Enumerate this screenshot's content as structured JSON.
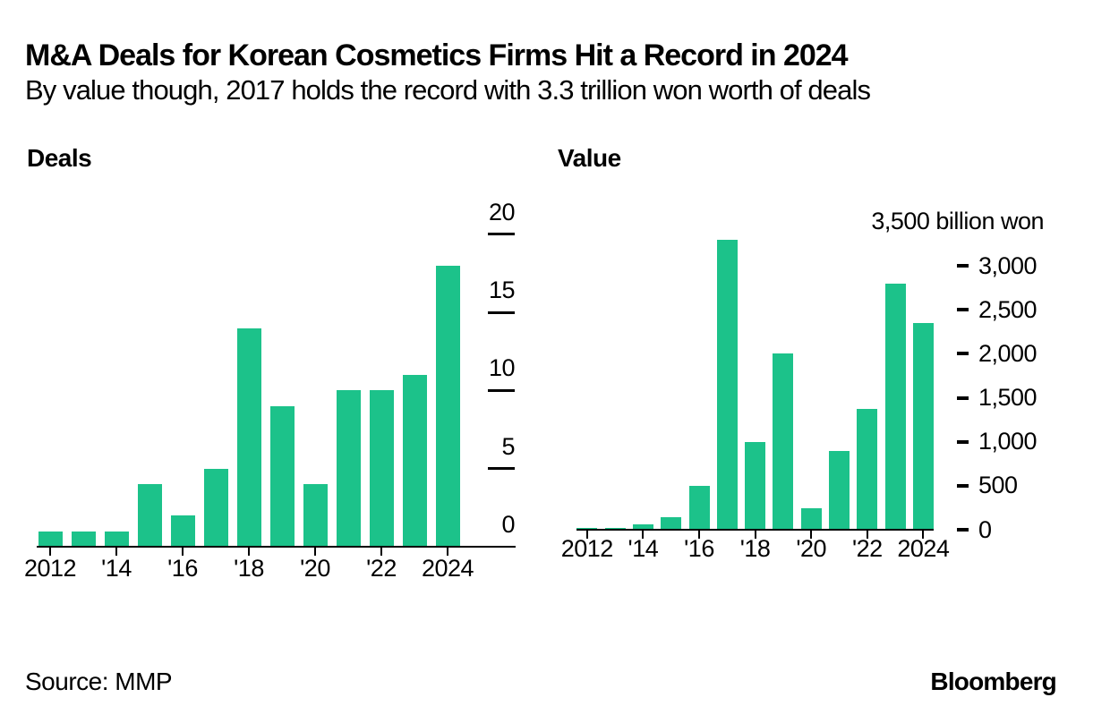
{
  "header": {
    "title": "M&A Deals for Korean Cosmetics Firms Hit a Record in 2024",
    "subtitle": "By value though, 2017 holds the record with 3.3 trillion won worth of deals"
  },
  "footer": {
    "source": "Source: MMP",
    "brand": "Bloomberg"
  },
  "colors": {
    "bar": "#1CC28A",
    "axis": "#000000",
    "text": "#000000",
    "background": "#FFFFFF"
  },
  "chart_data": [
    {
      "type": "bar",
      "title": "Deals",
      "categories": [
        2012,
        2013,
        2014,
        2015,
        2016,
        2017,
        2018,
        2019,
        2020,
        2021,
        2022,
        2023,
        2024
      ],
      "values": [
        1,
        1,
        1,
        4,
        2,
        5,
        14,
        9,
        4,
        10,
        10,
        11,
        18
      ],
      "x_tick_labels": [
        "2012",
        "'14",
        "'16",
        "'18",
        "'20",
        "'22",
        "2024"
      ],
      "y_ticks": [
        0,
        5,
        10,
        15,
        20
      ],
      "y_tick_labels": [
        "0",
        "5",
        "10",
        "15",
        "20"
      ],
      "ylim": [
        0,
        20
      ],
      "xlabel": "",
      "ylabel": "",
      "unit": "deals",
      "grid": false,
      "legend": "none",
      "y_axis_side": "right"
    },
    {
      "type": "bar",
      "title": "Value",
      "categories": [
        2012,
        2013,
        2014,
        2015,
        2016,
        2017,
        2018,
        2019,
        2020,
        2021,
        2022,
        2023,
        2024
      ],
      "values": [
        20,
        20,
        60,
        140,
        500,
        3300,
        1000,
        2000,
        240,
        900,
        1370,
        2800,
        2350
      ],
      "x_tick_labels": [
        "2012",
        "'14",
        "'16",
        "'18",
        "'20",
        "'22",
        "2024"
      ],
      "y_ticks": [
        0,
        500,
        1000,
        1500,
        2000,
        2500,
        3000
      ],
      "y_tick_labels": [
        "0",
        "500",
        "1,000",
        "1,500",
        "2,000",
        "2,500",
        "3,000"
      ],
      "y_axis_top_label": "3,500 billion won",
      "ylim": [
        0,
        3500
      ],
      "xlabel": "",
      "ylabel": "",
      "unit": "billion won",
      "grid": false,
      "legend": "none",
      "y_axis_side": "right"
    }
  ]
}
